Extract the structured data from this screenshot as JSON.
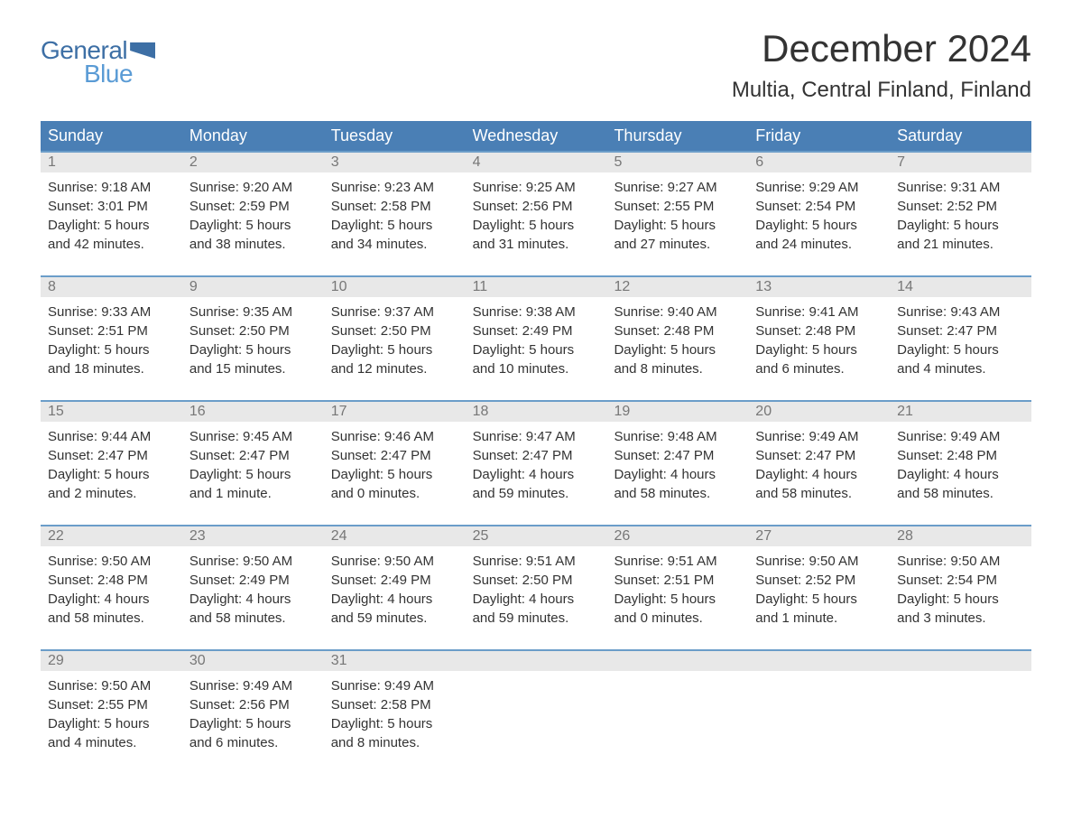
{
  "logo": {
    "general": "General",
    "blue": "Blue"
  },
  "title": "December 2024",
  "location": "Multia, Central Finland, Finland",
  "colors": {
    "header_bg": "#4a7fb5",
    "header_text": "#ffffff",
    "border_top": "#6b9dc9",
    "day_number_bg": "#e8e8e8",
    "day_number_text": "#777777",
    "body_text": "#333333",
    "logo_dark": "#3d6fa5",
    "logo_light": "#5a9bd5"
  },
  "day_names": [
    "Sunday",
    "Monday",
    "Tuesday",
    "Wednesday",
    "Thursday",
    "Friday",
    "Saturday"
  ],
  "weeks": [
    [
      {
        "n": "1",
        "sunrise": "9:18 AM",
        "sunset": "3:01 PM",
        "dl1": "Daylight: 5 hours",
        "dl2": "and 42 minutes."
      },
      {
        "n": "2",
        "sunrise": "9:20 AM",
        "sunset": "2:59 PM",
        "dl1": "Daylight: 5 hours",
        "dl2": "and 38 minutes."
      },
      {
        "n": "3",
        "sunrise": "9:23 AM",
        "sunset": "2:58 PM",
        "dl1": "Daylight: 5 hours",
        "dl2": "and 34 minutes."
      },
      {
        "n": "4",
        "sunrise": "9:25 AM",
        "sunset": "2:56 PM",
        "dl1": "Daylight: 5 hours",
        "dl2": "and 31 minutes."
      },
      {
        "n": "5",
        "sunrise": "9:27 AM",
        "sunset": "2:55 PM",
        "dl1": "Daylight: 5 hours",
        "dl2": "and 27 minutes."
      },
      {
        "n": "6",
        "sunrise": "9:29 AM",
        "sunset": "2:54 PM",
        "dl1": "Daylight: 5 hours",
        "dl2": "and 24 minutes."
      },
      {
        "n": "7",
        "sunrise": "9:31 AM",
        "sunset": "2:52 PM",
        "dl1": "Daylight: 5 hours",
        "dl2": "and 21 minutes."
      }
    ],
    [
      {
        "n": "8",
        "sunrise": "9:33 AM",
        "sunset": "2:51 PM",
        "dl1": "Daylight: 5 hours",
        "dl2": "and 18 minutes."
      },
      {
        "n": "9",
        "sunrise": "9:35 AM",
        "sunset": "2:50 PM",
        "dl1": "Daylight: 5 hours",
        "dl2": "and 15 minutes."
      },
      {
        "n": "10",
        "sunrise": "9:37 AM",
        "sunset": "2:50 PM",
        "dl1": "Daylight: 5 hours",
        "dl2": "and 12 minutes."
      },
      {
        "n": "11",
        "sunrise": "9:38 AM",
        "sunset": "2:49 PM",
        "dl1": "Daylight: 5 hours",
        "dl2": "and 10 minutes."
      },
      {
        "n": "12",
        "sunrise": "9:40 AM",
        "sunset": "2:48 PM",
        "dl1": "Daylight: 5 hours",
        "dl2": "and 8 minutes."
      },
      {
        "n": "13",
        "sunrise": "9:41 AM",
        "sunset": "2:48 PM",
        "dl1": "Daylight: 5 hours",
        "dl2": "and 6 minutes."
      },
      {
        "n": "14",
        "sunrise": "9:43 AM",
        "sunset": "2:47 PM",
        "dl1": "Daylight: 5 hours",
        "dl2": "and 4 minutes."
      }
    ],
    [
      {
        "n": "15",
        "sunrise": "9:44 AM",
        "sunset": "2:47 PM",
        "dl1": "Daylight: 5 hours",
        "dl2": "and 2 minutes."
      },
      {
        "n": "16",
        "sunrise": "9:45 AM",
        "sunset": "2:47 PM",
        "dl1": "Daylight: 5 hours",
        "dl2": "and 1 minute."
      },
      {
        "n": "17",
        "sunrise": "9:46 AM",
        "sunset": "2:47 PM",
        "dl1": "Daylight: 5 hours",
        "dl2": "and 0 minutes."
      },
      {
        "n": "18",
        "sunrise": "9:47 AM",
        "sunset": "2:47 PM",
        "dl1": "Daylight: 4 hours",
        "dl2": "and 59 minutes."
      },
      {
        "n": "19",
        "sunrise": "9:48 AM",
        "sunset": "2:47 PM",
        "dl1": "Daylight: 4 hours",
        "dl2": "and 58 minutes."
      },
      {
        "n": "20",
        "sunrise": "9:49 AM",
        "sunset": "2:47 PM",
        "dl1": "Daylight: 4 hours",
        "dl2": "and 58 minutes."
      },
      {
        "n": "21",
        "sunrise": "9:49 AM",
        "sunset": "2:48 PM",
        "dl1": "Daylight: 4 hours",
        "dl2": "and 58 minutes."
      }
    ],
    [
      {
        "n": "22",
        "sunrise": "9:50 AM",
        "sunset": "2:48 PM",
        "dl1": "Daylight: 4 hours",
        "dl2": "and 58 minutes."
      },
      {
        "n": "23",
        "sunrise": "9:50 AM",
        "sunset": "2:49 PM",
        "dl1": "Daylight: 4 hours",
        "dl2": "and 58 minutes."
      },
      {
        "n": "24",
        "sunrise": "9:50 AM",
        "sunset": "2:49 PM",
        "dl1": "Daylight: 4 hours",
        "dl2": "and 59 minutes."
      },
      {
        "n": "25",
        "sunrise": "9:51 AM",
        "sunset": "2:50 PM",
        "dl1": "Daylight: 4 hours",
        "dl2": "and 59 minutes."
      },
      {
        "n": "26",
        "sunrise": "9:51 AM",
        "sunset": "2:51 PM",
        "dl1": "Daylight: 5 hours",
        "dl2": "and 0 minutes."
      },
      {
        "n": "27",
        "sunrise": "9:50 AM",
        "sunset": "2:52 PM",
        "dl1": "Daylight: 5 hours",
        "dl2": "and 1 minute."
      },
      {
        "n": "28",
        "sunrise": "9:50 AM",
        "sunset": "2:54 PM",
        "dl1": "Daylight: 5 hours",
        "dl2": "and 3 minutes."
      }
    ],
    [
      {
        "n": "29",
        "sunrise": "9:50 AM",
        "sunset": "2:55 PM",
        "dl1": "Daylight: 5 hours",
        "dl2": "and 4 minutes."
      },
      {
        "n": "30",
        "sunrise": "9:49 AM",
        "sunset": "2:56 PM",
        "dl1": "Daylight: 5 hours",
        "dl2": "and 6 minutes."
      },
      {
        "n": "31",
        "sunrise": "9:49 AM",
        "sunset": "2:58 PM",
        "dl1": "Daylight: 5 hours",
        "dl2": "and 8 minutes."
      },
      null,
      null,
      null,
      null
    ]
  ],
  "labels": {
    "sunrise_prefix": "Sunrise: ",
    "sunset_prefix": "Sunset: "
  }
}
